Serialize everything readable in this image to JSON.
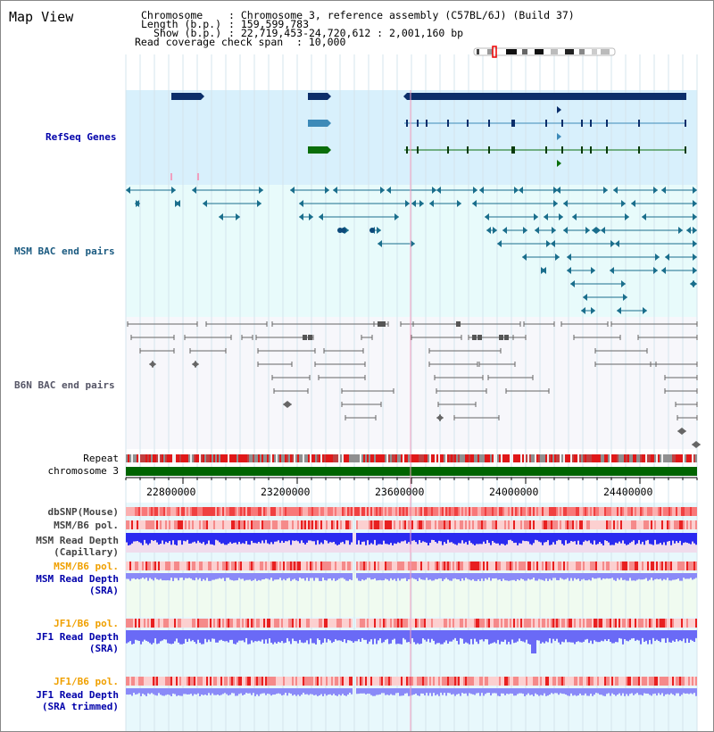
{
  "header": {
    "title": "Map View",
    "chromosome_key": "Chromosome",
    "chromosome_val": ": Chromosome 3, reference assembly (C57BL/6J) (Build 37)",
    "length_key": "Length (b.p.)",
    "length_val": ": 159,599,783",
    "show_key": "Show (b.p.)",
    "show_val": ": 22,719,453-24,720,612 : 2,001,160 bp",
    "coverage_key": "Read coverage check span",
    "coverage_val": ": 10,000"
  },
  "tracks": {
    "refseq": "RefSeq Genes",
    "msm_bac": "MSM BAC end pairs",
    "b6n_bac": "B6N BAC end pairs",
    "repeat": "Repeat",
    "chromosome": "chromosome 3",
    "dbsnp": "dbSNP(Mouse)",
    "msm_b6_pol_1": "MSM/B6 pol.",
    "msm_read_depth_cap_1": "MSM Read Depth",
    "msm_read_depth_cap_2": "(Capillary)",
    "msm_b6_pol_2": "MSM/B6 pol.",
    "msm_read_depth_sra_1": "MSM Read Depth",
    "msm_read_depth_sra_2": "(SRA)",
    "jf1_b6_pol_1": "JF1/B6 pol.",
    "jf1_read_depth_sra_1": "JF1 Read Depth",
    "jf1_read_depth_sra_2": "(SRA)",
    "jf1_b6_pol_2": "JF1/B6 pol.",
    "jf1_read_depth_trim_1": "JF1 Read Depth",
    "jf1_read_depth_trim_2": "(SRA trimmed)"
  },
  "axis": {
    "ticks": [
      "22800000",
      "23200000",
      "23600000",
      "24000000",
      "24400000"
    ]
  },
  "colors": {
    "refseq_bg": "#d8f0fc",
    "msm_bg": "#e8fbfb",
    "b6n_bg": "#f7f7fb",
    "refseq_label": "#0000aa",
    "msm_label": "#1a5a80",
    "b6n_label": "#555566",
    "gene_dark": "#0c2e6a",
    "gene_mid": "#3d8ab8",
    "gene_green": "#0a6e0a",
    "msm_feature": "#1a6e8c",
    "b6n_feature": "#666666",
    "depth_blue": "#2a2af0",
    "depth_light": "#8a8af8",
    "chrom_green": "#006400",
    "sra_label": "#f0a000"
  }
}
